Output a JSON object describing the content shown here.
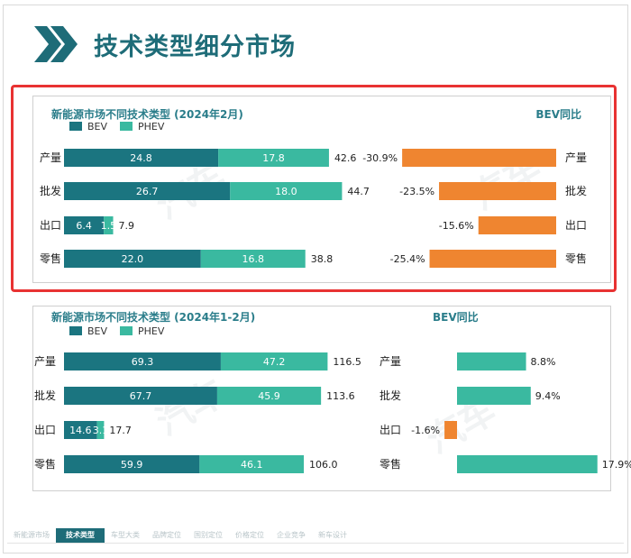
{
  "page": {
    "title": "技术类型细分市场"
  },
  "colors": {
    "bev": "#1b7580",
    "phev": "#3ab9a0",
    "growth": "#ef8530",
    "title": "#1e6c78"
  },
  "nav": {
    "items": [
      "新能源市场",
      "技术类型",
      "车型大类",
      "品牌定位",
      "国别定位",
      "价格定位",
      "企业竞争",
      "新车设计"
    ],
    "active_index": 1
  },
  "chart_data": [
    {
      "type": "bar",
      "title": "新能源市场不同技术类型 (2024年2月)",
      "growth_title": "BEV同比",
      "legend": [
        "BEV",
        "PHEV"
      ],
      "categories": [
        "产量",
        "批发",
        "出口",
        "零售"
      ],
      "series": [
        {
          "name": "BEV",
          "values": [
            24.8,
            26.7,
            6.4,
            22.0
          ],
          "labels": [
            "24.8",
            "26.7",
            "6.4",
            "22.0"
          ]
        },
        {
          "name": "PHEV",
          "values": [
            17.8,
            18.0,
            1.5,
            16.8
          ],
          "labels": [
            "17.8",
            "18.0",
            "1.5",
            "16.8"
          ]
        }
      ],
      "totals": [
        "42.6",
        "44.7",
        "7.9",
        "38.8"
      ],
      "growth": {
        "values": [
          -30.9,
          -23.5,
          -15.6,
          -25.4
        ],
        "labels": [
          "-30.9%",
          "-23.5%",
          "-15.6%",
          "-25.4%"
        ]
      }
    },
    {
      "type": "bar",
      "title": "新能源市场不同技术类型 (2024年1-2月)",
      "growth_title": "BEV同比",
      "legend": [
        "BEV",
        "PHEV"
      ],
      "categories": [
        "产量",
        "批发",
        "出口",
        "零售"
      ],
      "series": [
        {
          "name": "BEV",
          "values": [
            69.3,
            67.7,
            14.6,
            59.9
          ],
          "labels": [
            "69.3",
            "67.7",
            "14.6",
            "59.9"
          ]
        },
        {
          "name": "PHEV",
          "values": [
            47.2,
            45.9,
            3.1,
            46.1
          ],
          "labels": [
            "47.2",
            "45.9",
            "3.1",
            "46.1"
          ]
        }
      ],
      "totals": [
        "116.5",
        "113.6",
        "17.7",
        "106.0"
      ],
      "growth": {
        "values": [
          8.8,
          9.4,
          -1.6,
          17.9
        ],
        "labels": [
          "8.8%",
          "9.4%",
          "-1.6%",
          "17.9%"
        ]
      }
    }
  ]
}
